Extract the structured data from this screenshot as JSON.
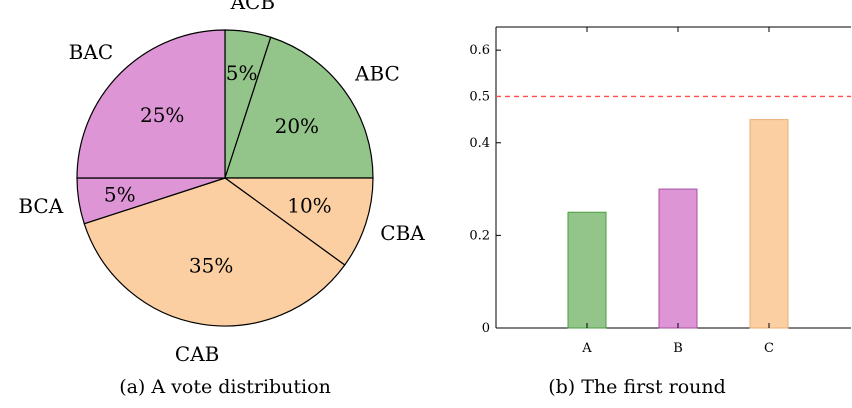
{
  "chart_data": [
    {
      "type": "pie",
      "caption": "(a) A vote distribution",
      "slices": [
        {
          "label": "ACB",
          "value": 5,
          "value_label": "5%",
          "color": "#93c58a"
        },
        {
          "label": "ABC",
          "value": 20,
          "value_label": "20%",
          "color": "#93c58a"
        },
        {
          "label": "CBA",
          "value": 10,
          "value_label": "10%",
          "color": "#fbcfa2"
        },
        {
          "label": "CAB",
          "value": 35,
          "value_label": "35%",
          "color": "#fbcfa2"
        },
        {
          "label": "BCA",
          "value": 5,
          "value_label": "5%",
          "color": "#dd95d5"
        },
        {
          "label": "BAC",
          "value": 25,
          "value_label": "25%",
          "color": "#dd95d5"
        }
      ]
    },
    {
      "type": "bar",
      "caption": "(b) The first round",
      "categories": [
        "A",
        "B",
        "C"
      ],
      "values": [
        0.25,
        0.3,
        0.45
      ],
      "colors": [
        "#93c58a",
        "#dd95d5",
        "#fbcfa2"
      ],
      "edge_colors": [
        "#4a9e40",
        "#a950a3",
        "#e8ad72"
      ],
      "ylim": [
        0,
        0.65
      ],
      "yticks": [
        0,
        0.2,
        0.4,
        0.5,
        0.6
      ],
      "ytick_labels": [
        "0",
        "0.2",
        "0.4",
        "0.5",
        "0.6"
      ],
      "reference_line": {
        "y": 0.5,
        "style": "dashed",
        "color": "#ff4d4d"
      },
      "grid": false
    }
  ]
}
